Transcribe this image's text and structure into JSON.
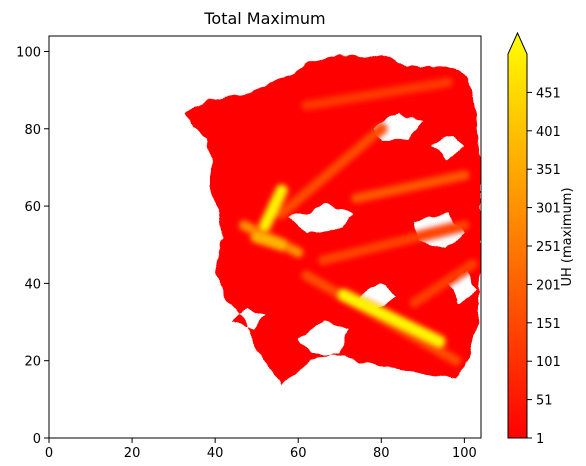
{
  "chart_data": {
    "type": "heatmap",
    "title": "Total Maximum",
    "xlabel": "",
    "ylabel": "",
    "xlim": [
      0,
      104
    ],
    "ylim": [
      0,
      104
    ],
    "x_ticks": [
      0,
      20,
      40,
      60,
      80,
      100
    ],
    "y_ticks": [
      0,
      20,
      40,
      60,
      80,
      100
    ],
    "grid": false,
    "colorbar": {
      "label": "UH (maximum)",
      "min": 1,
      "max": 501,
      "extend": "max",
      "ticks": [
        1,
        51,
        101,
        151,
        201,
        251,
        301,
        351,
        401,
        451
      ],
      "colormap": [
        "#ff0000",
        "#ff4000",
        "#ff8000",
        "#ffbf00",
        "#ffff00"
      ]
    },
    "field": {
      "background_value": 5,
      "region_polygon": [
        [
          34,
          85
        ],
        [
          38,
          87
        ],
        [
          42,
          88
        ],
        [
          47,
          89
        ],
        [
          52,
          91
        ],
        [
          55,
          93
        ],
        [
          58,
          94
        ],
        [
          61,
          96
        ],
        [
          65,
          98
        ],
        [
          69,
          99
        ],
        [
          72,
          99
        ],
        [
          76,
          98
        ],
        [
          80,
          99
        ],
        [
          84,
          97
        ],
        [
          90,
          96
        ],
        [
          95,
          96
        ],
        [
          99,
          95
        ],
        [
          101,
          93
        ],
        [
          102,
          88
        ],
        [
          103,
          80
        ],
        [
          104,
          72
        ],
        [
          104,
          60
        ],
        [
          104,
          45
        ],
        [
          103,
          30
        ],
        [
          101,
          20
        ],
        [
          98,
          15
        ],
        [
          94,
          16
        ],
        [
          89,
          17
        ],
        [
          82,
          18
        ],
        [
          75,
          20
        ],
        [
          68,
          22
        ],
        [
          63,
          20
        ],
        [
          59,
          16
        ],
        [
          56,
          14
        ],
        [
          53,
          18
        ],
        [
          50,
          24
        ],
        [
          47,
          30
        ],
        [
          44,
          34
        ],
        [
          41,
          40
        ],
        [
          40,
          46
        ],
        [
          42,
          52
        ],
        [
          41,
          58
        ],
        [
          39,
          63
        ],
        [
          39,
          70
        ],
        [
          38,
          78
        ],
        [
          35,
          80
        ],
        [
          33,
          84
        ]
      ],
      "holes": [
        [
          [
            58,
            57
          ],
          [
            66,
            60
          ],
          [
            73,
            58
          ],
          [
            70,
            54
          ],
          [
            62,
            53
          ]
        ],
        [
          [
            88,
            56
          ],
          [
            96,
            58
          ],
          [
            100,
            53
          ],
          [
            95,
            49
          ],
          [
            89,
            51
          ]
        ],
        [
          [
            78,
            80
          ],
          [
            84,
            84
          ],
          [
            90,
            82
          ],
          [
            86,
            77
          ],
          [
            80,
            77
          ]
        ],
        [
          [
            60,
            26
          ],
          [
            66,
            30
          ],
          [
            72,
            28
          ],
          [
            70,
            22
          ],
          [
            63,
            22
          ]
        ],
        [
          [
            92,
            76
          ],
          [
            97,
            78
          ],
          [
            100,
            75
          ],
          [
            96,
            72
          ]
        ],
        [
          [
            44,
            30
          ],
          [
            48,
            34
          ],
          [
            52,
            32
          ],
          [
            49,
            28
          ]
        ],
        [
          [
            74,
            36
          ],
          [
            80,
            40
          ],
          [
            84,
            37
          ],
          [
            79,
            33
          ]
        ],
        [
          [
            96,
            40
          ],
          [
            101,
            43
          ],
          [
            103,
            38
          ],
          [
            99,
            35
          ]
        ]
      ],
      "streaks": [
        {
          "from": [
            71,
            37
          ],
          "to": [
            94,
            25
          ],
          "value": 480
        },
        {
          "from": [
            52,
            55
          ],
          "to": [
            56,
            64
          ],
          "value": 470
        },
        {
          "from": [
            47,
            55
          ],
          "to": [
            60,
            48
          ],
          "value": 280
        },
        {
          "from": [
            50,
            52
          ],
          "to": [
            56,
            50
          ],
          "value": 350
        },
        {
          "from": [
            74,
            62
          ],
          "to": [
            100,
            68
          ],
          "value": 170
        },
        {
          "from": [
            62,
            42
          ],
          "to": [
            98,
            20
          ],
          "value": 150
        },
        {
          "from": [
            56,
            58
          ],
          "to": [
            80,
            80
          ],
          "value": 150
        },
        {
          "from": [
            66,
            46
          ],
          "to": [
            100,
            55
          ],
          "value": 130
        },
        {
          "from": [
            62,
            86
          ],
          "to": [
            96,
            92
          ],
          "value": 110
        },
        {
          "from": [
            88,
            35
          ],
          "to": [
            102,
            45
          ],
          "value": 120
        }
      ]
    }
  }
}
